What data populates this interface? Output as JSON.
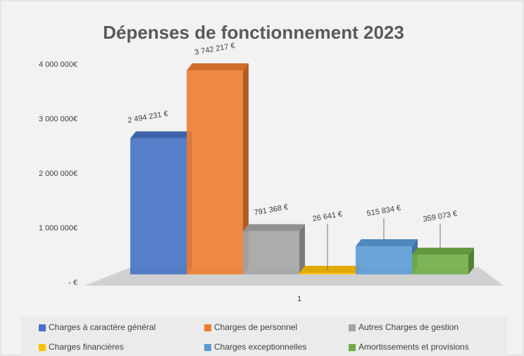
{
  "chart_data": {
    "type": "bar",
    "title": "Dépenses de fonctionnement 2023",
    "categories": [
      "1"
    ],
    "series": [
      {
        "name": "Charges à caractère général",
        "color": "#4472c4",
        "values": [
          2494231
        ],
        "value_labels": [
          "2 494 231 €"
        ]
      },
      {
        "name": "Charges de personnel",
        "color": "#ed7d31",
        "values": [
          3742217
        ],
        "value_labels": [
          "3 742 217 €"
        ]
      },
      {
        "name": "Autres Charges de gestion",
        "color": "#a5a5a5",
        "values": [
          791368
        ],
        "value_labels": [
          "791 368 €"
        ]
      },
      {
        "name": "Charges financières",
        "color": "#ffc000",
        "values": [
          26641
        ],
        "value_labels": [
          "26 641 €"
        ]
      },
      {
        "name": "Charges exceptionnelles",
        "color": "#5b9bd5",
        "values": [
          515834
        ],
        "value_labels": [
          "515 834 €"
        ]
      },
      {
        "name": "Amortissements et provisions",
        "color": "#70ad47",
        "values": [
          359073
        ],
        "value_labels": [
          "359 073 €"
        ]
      }
    ],
    "ylim": [
      0,
      4000000
    ],
    "yticks": [
      {
        "value": 0,
        "label": "-   €"
      },
      {
        "value": 1000000,
        "label": "1 000 000€"
      },
      {
        "value": 2000000,
        "label": "2 000 000€"
      },
      {
        "value": 3000000,
        "label": "3 000 000€"
      },
      {
        "value": 4000000,
        "label": "4 000 000€"
      }
    ],
    "legend": "bottom"
  }
}
